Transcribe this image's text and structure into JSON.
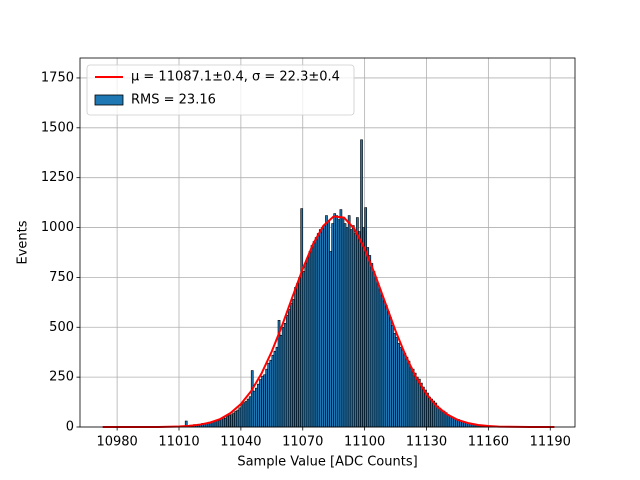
{
  "chart_data": {
    "type": "histogram",
    "xlabel": "Sample Value [ADC Counts]",
    "ylabel": "Events",
    "xlim": [
      10962,
      11202
    ],
    "ylim": [
      0,
      1850
    ],
    "xticks": [
      10980,
      11010,
      11040,
      11070,
      11100,
      11130,
      11160,
      11190
    ],
    "yticks": [
      0,
      250,
      500,
      750,
      1000,
      1250,
      1500,
      1750
    ],
    "grid": true,
    "legend": "upper left",
    "series": [
      {
        "name": "μ = 11087.1±0.4, σ = 22.3±0.4",
        "type": "line",
        "color": "#ff0000",
        "x": [
          10973,
          10990,
          11000,
          11005,
          11010,
          11015,
          11020,
          11025,
          11030,
          11035,
          11040,
          11045,
          11050,
          11055,
          11060,
          11065,
          11070,
          11075,
          11080,
          11085,
          11090,
          11095,
          11100,
          11105,
          11110,
          11115,
          11120,
          11125,
          11130,
          11135,
          11140,
          11145,
          11150,
          11155,
          11160,
          11165,
          11170,
          11180,
          11192
        ],
        "values": [
          0,
          0,
          0,
          1,
          2.5,
          5.8,
          11.6,
          22,
          40,
          70,
          115,
          180,
          268,
          379,
          509,
          652,
          793,
          917,
          1009,
          1056,
          1050,
          994,
          894,
          765,
          623,
          482,
          355,
          248,
          165,
          104,
          63,
          36,
          20,
          10,
          5,
          2,
          1,
          0,
          0
        ]
      },
      {
        "name": "RMS = 23.16",
        "type": "histogram",
        "color": "#1f77b4",
        "bins": [
          11000,
          11001,
          11002,
          11003,
          11004,
          11005,
          11006,
          11007,
          11008,
          11009,
          11010,
          11011,
          11012,
          11013,
          11014,
          11015,
          11016,
          11017,
          11018,
          11019,
          11020,
          11021,
          11022,
          11023,
          11024,
          11025,
          11026,
          11027,
          11028,
          11029,
          11030,
          11031,
          11032,
          11033,
          11034,
          11035,
          11036,
          11037,
          11038,
          11039,
          11040,
          11041,
          11042,
          11043,
          11044,
          11045,
          11046,
          11047,
          11048,
          11049,
          11050,
          11051,
          11052,
          11053,
          11054,
          11055,
          11056,
          11057,
          11058,
          11059,
          11060,
          11061,
          11062,
          11063,
          11064,
          11065,
          11066,
          11067,
          11068,
          11069,
          11070,
          11071,
          11072,
          11073,
          11074,
          11075,
          11076,
          11077,
          11078,
          11079,
          11080,
          11081,
          11082,
          11083,
          11084,
          11085,
          11086,
          11087,
          11088,
          11089,
          11090,
          11091,
          11092,
          11093,
          11094,
          11095,
          11096,
          11097,
          11098,
          11099,
          11100,
          11101,
          11102,
          11103,
          11104,
          11105,
          11106,
          11107,
          11108,
          11109,
          11110,
          11111,
          11112,
          11113,
          11114,
          11115,
          11116,
          11117,
          11118,
          11119,
          11120,
          11121,
          11122,
          11123,
          11124,
          11125,
          11126,
          11127,
          11128,
          11129,
          11130,
          11131,
          11132,
          11133,
          11134,
          11135,
          11136,
          11137,
          11138,
          11139,
          11140,
          11141,
          11142,
          11143,
          11144,
          11145,
          11146,
          11147,
          11148,
          11149,
          11150,
          11151,
          11152,
          11153,
          11154,
          11155,
          11156,
          11157,
          11158,
          11159,
          11160,
          11161,
          11162,
          11163,
          11164,
          11165,
          11166,
          11167,
          11168,
          11169,
          11170
        ],
        "values": [
          0,
          1,
          0,
          2,
          1,
          3,
          2,
          1,
          4,
          3,
          4,
          6,
          5,
          30,
          7,
          9,
          8,
          12,
          10,
          14,
          12,
          18,
          15,
          20,
          24,
          22,
          28,
          30,
          34,
          33,
          42,
          48,
          45,
          55,
          60,
          62,
          70,
          78,
          85,
          96,
          112,
          122,
          128,
          140,
          152,
          283,
          180,
          195,
          215,
          238,
          255,
          262,
          290,
          320,
          335,
          360,
          380,
          400,
          535,
          460,
          500,
          520,
          560,
          590,
          620,
          640,
          700,
          720,
          750,
          1095,
          780,
          820,
          850,
          880,
          910,
          930,
          950,
          970,
          990,
          1000,
          1010,
          1060,
          1030,
          880,
          1020,
          1070,
          1060,
          1040,
          1090,
          1050,
          1020,
          1000,
          1060,
          990,
          1010,
          970,
          1050,
          980,
          1440,
          1000,
          1100,
          900,
          860,
          820,
          780,
          750,
          720,
          690,
          660,
          630,
          610,
          580,
          550,
          510,
          470,
          450,
          420,
          400,
          390,
          370,
          350,
          330,
          300,
          290,
          270,
          250,
          240,
          220,
          200,
          185,
          170,
          150,
          140,
          130,
          120,
          105,
          95,
          85,
          80,
          72,
          62,
          55,
          50,
          45,
          40,
          38,
          32,
          28,
          25,
          22,
          20,
          18,
          15,
          13,
          12,
          10,
          9,
          8,
          7,
          6,
          5,
          4,
          4,
          3,
          3,
          2,
          2,
          1,
          1,
          1
        ]
      }
    ]
  }
}
